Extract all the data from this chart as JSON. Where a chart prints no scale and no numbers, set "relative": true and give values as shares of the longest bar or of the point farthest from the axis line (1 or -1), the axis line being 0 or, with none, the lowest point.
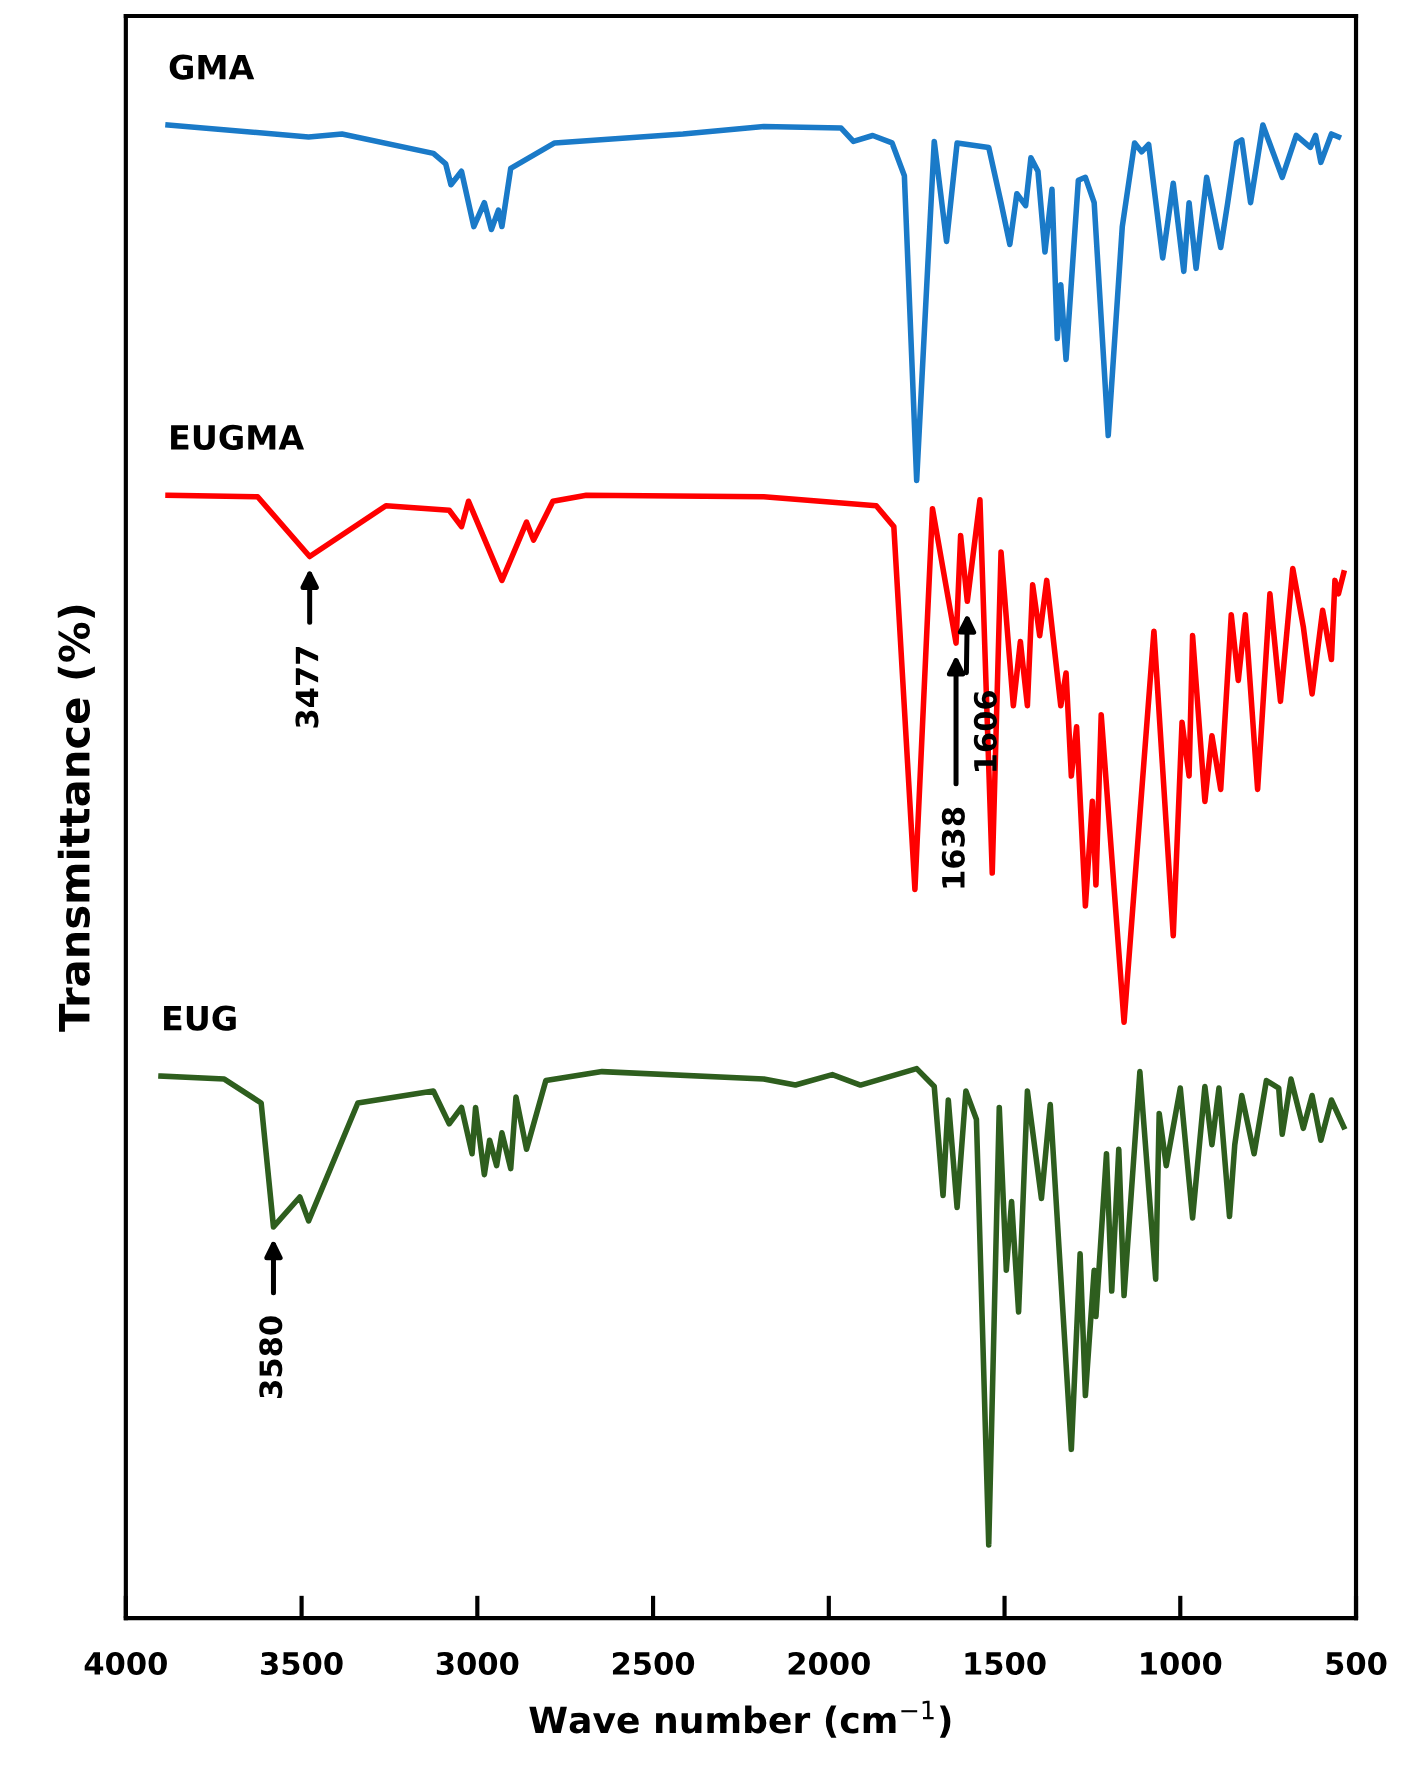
{
  "chart_data": {
    "type": "line",
    "relative": true,
    "xlabel": "Wave number (cm$^{−1}$)",
    "ylabel": "Transmittance (%)",
    "xlim": [
      4000,
      500
    ],
    "xticks": [
      4000,
      3500,
      3000,
      2500,
      2000,
      1500,
      1000,
      500
    ],
    "grid": false,
    "legend": false,
    "marker": "none",
    "line_style": "solid",
    "series": [
      {
        "name": "GMA",
        "color": "#1a7ac8",
        "x": [
          3880,
          3480,
          3385,
          3125,
          3090,
          3075,
          3045,
          3010,
          2980,
          2960,
          2940,
          2930,
          2905,
          2780,
          2415,
          2185,
          1965,
          1930,
          1875,
          1820,
          1785,
          1750,
          1725,
          1700,
          1665,
          1635,
          1545,
          1510,
          1485,
          1465,
          1440,
          1425,
          1405,
          1385,
          1365,
          1350,
          1340,
          1325,
          1290,
          1270,
          1245,
          1205,
          1165,
          1130,
          1110,
          1090,
          1050,
          1020,
          990,
          975,
          955,
          925,
          885,
          865,
          840,
          825,
          800,
          765,
          710,
          670,
          630,
          615,
          600,
          570,
          550
        ],
        "values": [
          1.0,
          0.992,
          0.994,
          0.981,
          0.974,
          0.96,
          0.969,
          0.932,
          0.948,
          0.93,
          0.943,
          0.932,
          0.971,
          0.988,
          0.994,
          0.999,
          0.998,
          0.989,
          0.993,
          0.988,
          0.966,
          0.762,
          0.876,
          0.989,
          0.922,
          0.988,
          0.985,
          0.948,
          0.92,
          0.954,
          0.946,
          0.978,
          0.969,
          0.915,
          0.957,
          0.857,
          0.893,
          0.843,
          0.963,
          0.965,
          0.948,
          0.792,
          0.932,
          0.988,
          0.982,
          0.987,
          0.911,
          0.961,
          0.902,
          0.948,
          0.904,
          0.965,
          0.918,
          0.948,
          0.988,
          0.99,
          0.948,
          1.0,
          0.965,
          0.993,
          0.985,
          0.993,
          0.975,
          0.994,
          0.992
        ]
      },
      {
        "name": "EUGMA",
        "color": "#ff0000",
        "x": [
          3880,
          3625,
          3477,
          3260,
          3080,
          3045,
          3025,
          2930,
          2860,
          2840,
          2785,
          2690,
          2185,
          1865,
          1815,
          1755,
          1705,
          1638,
          1625,
          1606,
          1570,
          1535,
          1510,
          1475,
          1455,
          1435,
          1420,
          1400,
          1380,
          1340,
          1325,
          1310,
          1295,
          1270,
          1250,
          1240,
          1225,
          1160,
          1075,
          1020,
          995,
          975,
          965,
          930,
          910,
          885,
          855,
          835,
          815,
          780,
          745,
          715,
          680,
          650,
          625,
          595,
          570,
          560,
          550,
          535
        ],
        "values": [
          0.752,
          0.751,
          0.711,
          0.745,
          0.742,
          0.731,
          0.748,
          0.695,
          0.734,
          0.722,
          0.748,
          0.752,
          0.751,
          0.745,
          0.731,
          0.488,
          0.743,
          0.653,
          0.725,
          0.681,
          0.749,
          0.499,
          0.714,
          0.611,
          0.654,
          0.611,
          0.692,
          0.658,
          0.695,
          0.611,
          0.633,
          0.564,
          0.597,
          0.477,
          0.547,
          0.491,
          0.605,
          0.399,
          0.661,
          0.457,
          0.6,
          0.564,
          0.658,
          0.547,
          0.591,
          0.555,
          0.672,
          0.628,
          0.672,
          0.555,
          0.686,
          0.614,
          0.703,
          0.664,
          0.619,
          0.675,
          0.642,
          0.695,
          0.686,
          0.7
        ]
      },
      {
        "name": "EUG",
        "color": "#2e5e1e",
        "x": [
          3900,
          3720,
          3615,
          3580,
          3505,
          3480,
          3340,
          3125,
          3080,
          3045,
          3015,
          3005,
          2980,
          2965,
          2945,
          2930,
          2905,
          2890,
          2860,
          2805,
          2645,
          2185,
          2095,
          1990,
          1910,
          1750,
          1700,
          1675,
          1660,
          1635,
          1610,
          1580,
          1545,
          1515,
          1495,
          1480,
          1460,
          1435,
          1395,
          1370,
          1310,
          1285,
          1270,
          1245,
          1240,
          1210,
          1195,
          1175,
          1160,
          1115,
          1070,
          1060,
          1040,
          1000,
          965,
          930,
          910,
          890,
          860,
          845,
          825,
          790,
          755,
          720,
          710,
          685,
          650,
          625,
          600,
          570,
          535
        ],
        "values": [
          0.363,
          0.361,
          0.345,
          0.262,
          0.282,
          0.266,
          0.345,
          0.353,
          0.331,
          0.342,
          0.311,
          0.342,
          0.297,
          0.32,
          0.303,
          0.325,
          0.301,
          0.349,
          0.314,
          0.36,
          0.366,
          0.361,
          0.357,
          0.364,
          0.357,
          0.368,
          0.356,
          0.283,
          0.347,
          0.275,
          0.353,
          0.334,
          0.049,
          0.342,
          0.233,
          0.279,
          0.205,
          0.353,
          0.281,
          0.344,
          0.113,
          0.244,
          0.149,
          0.233,
          0.202,
          0.311,
          0.219,
          0.314,
          0.216,
          0.366,
          0.227,
          0.338,
          0.303,
          0.355,
          0.268,
          0.356,
          0.317,
          0.355,
          0.269,
          0.317,
          0.35,
          0.311,
          0.36,
          0.355,
          0.324,
          0.361,
          0.328,
          0.35,
          0.32,
          0.347,
          0.329
        ]
      }
    ],
    "annotations": [
      {
        "text": "3477",
        "x": 3477,
        "y": 0.711
      },
      {
        "text": "1606",
        "x": 1606,
        "y": 0.681
      },
      {
        "text": "1638",
        "x": 1638,
        "y": 0.653
      },
      {
        "text": "3580",
        "x": 3580,
        "y": 0.262
      }
    ]
  }
}
